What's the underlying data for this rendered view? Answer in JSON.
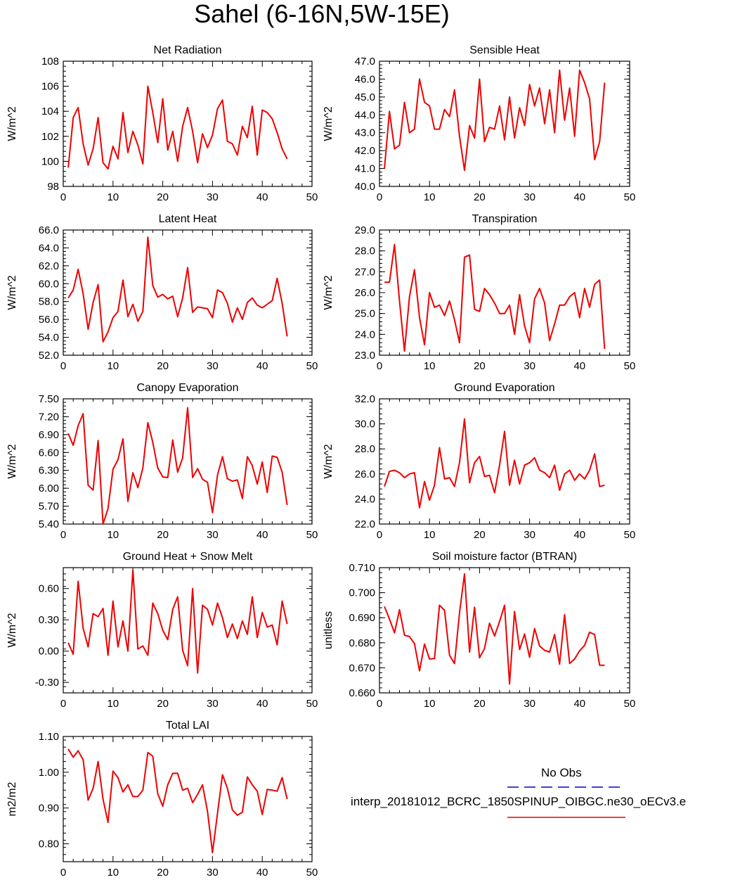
{
  "title": "Sahel (6-16N,5W-15E)",
  "legend": {
    "obs_label": "No Obs",
    "obs_color": "#0000cc",
    "model_label": "interp_20181012_BCRC_1850SPINUP_OIBGC.ne30_oECv3.e",
    "model_color": "#ee0000"
  },
  "chart_data": [
    {
      "type": "line",
      "title": "Net Radiation",
      "ylabel": "W/m^2",
      "xlim": [
        0,
        50
      ],
      "ylim": [
        98,
        108
      ],
      "xticks": [
        "0",
        "10",
        "20",
        "30",
        "40",
        "50"
      ],
      "yticks": [
        {
          "v": 98,
          "label": "98"
        },
        {
          "v": 100,
          "label": "100"
        },
        {
          "v": 102,
          "label": "102"
        },
        {
          "v": 104,
          "label": "104"
        },
        {
          "v": 106,
          "label": "106"
        },
        {
          "v": 108,
          "label": "108"
        }
      ],
      "series": [
        {
          "color": "#ee0000",
          "values": [
            99.5,
            103.5,
            104.3,
            101.4,
            99.7,
            101.0,
            103.5,
            99.9,
            99.4,
            101.2,
            100.2,
            103.9,
            100.7,
            102.4,
            101.3,
            99.8,
            106.0,
            103.9,
            101.5,
            105.0,
            100.9,
            102.4,
            100.0,
            102.8,
            104.3,
            102.4,
            99.9,
            102.2,
            101.1,
            102.1,
            104.2,
            104.9,
            101.6,
            101.4,
            100.5,
            102.8,
            101.9,
            104.4,
            100.5,
            104.1,
            103.9,
            103.4,
            102.3,
            101.0,
            100.2
          ]
        }
      ]
    },
    {
      "type": "line",
      "title": "Sensible Heat",
      "ylabel": "W/m^2",
      "xlim": [
        0,
        50
      ],
      "ylim": [
        40,
        47
      ],
      "xticks": [
        "0",
        "10",
        "20",
        "30",
        "40",
        "50"
      ],
      "yticks": [
        {
          "v": 40,
          "label": "40.0"
        },
        {
          "v": 41,
          "label": "41.0"
        },
        {
          "v": 42,
          "label": "42.0"
        },
        {
          "v": 43,
          "label": "43.0"
        },
        {
          "v": 44,
          "label": "44.0"
        },
        {
          "v": 45,
          "label": "45.0"
        },
        {
          "v": 46,
          "label": "46.0"
        },
        {
          "v": 47,
          "label": "47.0"
        }
      ],
      "series": [
        {
          "color": "#ee0000",
          "values": [
            41.0,
            44.2,
            42.1,
            42.3,
            44.7,
            43.0,
            43.2,
            46.0,
            44.7,
            44.5,
            43.2,
            43.2,
            44.3,
            43.9,
            45.4,
            42.8,
            40.9,
            43.4,
            42.7,
            46.0,
            42.5,
            43.3,
            43.2,
            44.5,
            42.6,
            45.0,
            42.7,
            44.4,
            43.4,
            45.7,
            44.5,
            45.5,
            43.5,
            45.4,
            43.0,
            46.5,
            43.7,
            45.5,
            42.8,
            46.5,
            45.8,
            44.9,
            41.5,
            42.5,
            45.8
          ]
        }
      ]
    },
    {
      "type": "line",
      "title": "Latent Heat",
      "ylabel": "W/m^2",
      "xlim": [
        0,
        50
      ],
      "ylim": [
        52,
        66
      ],
      "xticks": [
        "0",
        "10",
        "20",
        "30",
        "40",
        "50"
      ],
      "yticks": [
        {
          "v": 52,
          "label": "52.0"
        },
        {
          "v": 54,
          "label": "54.0"
        },
        {
          "v": 56,
          "label": "56.0"
        },
        {
          "v": 58,
          "label": "58.0"
        },
        {
          "v": 60,
          "label": "60.0"
        },
        {
          "v": 62,
          "label": "62.0"
        },
        {
          "v": 64,
          "label": "64.0"
        },
        {
          "v": 66,
          "label": "66.0"
        }
      ],
      "series": [
        {
          "color": "#ee0000",
          "values": [
            58.4,
            59.3,
            61.6,
            58.9,
            54.9,
            57.9,
            59.9,
            53.5,
            54.6,
            56.2,
            56.9,
            60.4,
            56.3,
            57.7,
            55.8,
            56.9,
            65.2,
            59.8,
            58.5,
            58.8,
            58.3,
            58.6,
            56.3,
            58.4,
            61.8,
            56.8,
            57.4,
            57.3,
            57.2,
            56.2,
            59.3,
            59.0,
            57.8,
            55.7,
            57.3,
            56.0,
            57.9,
            58.4,
            57.6,
            57.3,
            57.7,
            58.1,
            60.6,
            57.8,
            54.1
          ]
        }
      ]
    },
    {
      "type": "line",
      "title": "Transpiration",
      "ylabel": "W/m^2",
      "xlim": [
        0,
        50
      ],
      "ylim": [
        23,
        29
      ],
      "xticks": [
        "0",
        "10",
        "20",
        "30",
        "40",
        "50"
      ],
      "yticks": [
        {
          "v": 23,
          "label": "23.0"
        },
        {
          "v": 24,
          "label": "24.0"
        },
        {
          "v": 25,
          "label": "25.0"
        },
        {
          "v": 26,
          "label": "26.0"
        },
        {
          "v": 27,
          "label": "27.0"
        },
        {
          "v": 28,
          "label": "28.0"
        },
        {
          "v": 29,
          "label": "29.0"
        }
      ],
      "series": [
        {
          "color": "#ee0000",
          "values": [
            26.5,
            26.5,
            28.3,
            25.6,
            23.2,
            25.8,
            27.1,
            24.8,
            23.5,
            26.0,
            25.3,
            25.4,
            24.9,
            25.6,
            24.7,
            23.6,
            27.7,
            27.8,
            25.2,
            25.1,
            26.2,
            25.9,
            25.5,
            25.0,
            25.0,
            25.4,
            24.0,
            25.9,
            24.4,
            23.6,
            25.7,
            26.2,
            25.5,
            23.7,
            24.5,
            25.4,
            25.4,
            25.8,
            26.0,
            24.8,
            26.2,
            25.3,
            26.4,
            26.6,
            23.3
          ]
        }
      ]
    },
    {
      "type": "line",
      "title": "Canopy Evaporation",
      "ylabel": "W/m^2",
      "xlim": [
        0,
        50
      ],
      "ylim": [
        5.4,
        7.5
      ],
      "xticks": [
        "0",
        "10",
        "20",
        "30",
        "40",
        "50"
      ],
      "yticks": [
        {
          "v": 5.4,
          "label": "5.40"
        },
        {
          "v": 5.7,
          "label": "5.70"
        },
        {
          "v": 6.0,
          "label": "6.00"
        },
        {
          "v": 6.3,
          "label": "6.30"
        },
        {
          "v": 6.6,
          "label": "6.60"
        },
        {
          "v": 6.9,
          "label": "6.90"
        },
        {
          "v": 7.2,
          "label": "7.20"
        },
        {
          "v": 7.5,
          "label": "7.50"
        }
      ],
      "series": [
        {
          "color": "#ee0000",
          "values": [
            6.92,
            6.72,
            7.05,
            7.25,
            6.05,
            5.97,
            6.8,
            5.4,
            5.66,
            6.32,
            6.48,
            6.83,
            5.78,
            6.26,
            6.01,
            6.34,
            7.1,
            6.77,
            6.34,
            6.19,
            6.18,
            6.81,
            6.27,
            6.51,
            7.35,
            6.18,
            6.33,
            6.15,
            6.1,
            5.59,
            6.22,
            6.53,
            6.16,
            6.12,
            6.14,
            5.83,
            6.53,
            6.38,
            6.07,
            6.44,
            5.93,
            6.54,
            6.52,
            6.27,
            5.72
          ]
        }
      ]
    },
    {
      "type": "line",
      "title": "Ground Evaporation",
      "ylabel": "W/m^2",
      "xlim": [
        0,
        50
      ],
      "ylim": [
        22,
        32
      ],
      "xticks": [
        "0",
        "10",
        "20",
        "30",
        "40",
        "50"
      ],
      "yticks": [
        {
          "v": 22,
          "label": "22.0"
        },
        {
          "v": 24,
          "label": "24.0"
        },
        {
          "v": 26,
          "label": "26.0"
        },
        {
          "v": 28,
          "label": "28.0"
        },
        {
          "v": 30,
          "label": "30.0"
        },
        {
          "v": 32,
          "label": "32.0"
        }
      ],
      "series": [
        {
          "color": "#ee0000",
          "values": [
            25.0,
            26.2,
            26.3,
            26.1,
            25.7,
            26.0,
            26.1,
            23.3,
            25.4,
            23.9,
            25.1,
            28.1,
            25.6,
            25.7,
            25.0,
            26.9,
            30.4,
            25.3,
            26.9,
            27.4,
            25.8,
            25.9,
            24.5,
            26.7,
            29.4,
            25.1,
            27.1,
            25.2,
            26.7,
            26.9,
            27.3,
            26.3,
            26.1,
            25.7,
            26.7,
            24.7,
            26.0,
            26.3,
            25.5,
            26.0,
            25.6,
            26.3,
            27.6,
            25.0,
            25.1
          ]
        }
      ]
    },
    {
      "type": "line",
      "title": "Ground Heat + Snow Melt",
      "ylabel": "W/m^2",
      "xlim": [
        0,
        50
      ],
      "ylim": [
        -0.4,
        0.8
      ],
      "xticks": [
        "0",
        "10",
        "20",
        "30",
        "40",
        "50"
      ],
      "yticks": [
        {
          "v": -0.3,
          "label": "-0.30"
        },
        {
          "v": 0.0,
          "label": "0.00"
        },
        {
          "v": 0.3,
          "label": "0.30"
        },
        {
          "v": 0.6,
          "label": "0.60"
        }
      ],
      "series": [
        {
          "color": "#ee0000",
          "values": [
            0.08,
            -0.03,
            0.67,
            0.22,
            0.04,
            0.36,
            0.33,
            0.41,
            -0.04,
            0.48,
            0.04,
            0.29,
            0.0,
            0.78,
            0.02,
            0.05,
            -0.04,
            0.46,
            0.36,
            0.2,
            0.11,
            0.4,
            0.52,
            0.01,
            -0.14,
            0.6,
            -0.21,
            0.44,
            0.4,
            0.25,
            0.46,
            0.32,
            0.13,
            0.26,
            0.12,
            0.29,
            0.16,
            0.52,
            0.13,
            0.37,
            0.23,
            0.25,
            0.06,
            0.48,
            0.26
          ]
        }
      ]
    },
    {
      "type": "line",
      "title": "Soil moisture factor (BTRAN)",
      "ylabel": "unitless",
      "xlim": [
        0,
        50
      ],
      "ylim": [
        0.66,
        0.71
      ],
      "xticks": [
        "0",
        "10",
        "20",
        "30",
        "40",
        "50"
      ],
      "yticks": [
        {
          "v": 0.66,
          "label": "0.660"
        },
        {
          "v": 0.67,
          "label": "0.670"
        },
        {
          "v": 0.68,
          "label": "0.680"
        },
        {
          "v": 0.69,
          "label": "0.690"
        },
        {
          "v": 0.7,
          "label": "0.700"
        },
        {
          "v": 0.71,
          "label": "0.710"
        }
      ],
      "series": [
        {
          "color": "#ee0000",
          "values": [
            0.6945,
            0.6895,
            0.684,
            0.6932,
            0.683,
            0.6825,
            0.6797,
            0.6688,
            0.6795,
            0.6735,
            0.6737,
            0.695,
            0.693,
            0.675,
            0.6717,
            0.692,
            0.7075,
            0.6763,
            0.6942,
            0.674,
            0.6777,
            0.6878,
            0.6827,
            0.6885,
            0.695,
            0.6635,
            0.6925,
            0.6773,
            0.6835,
            0.6742,
            0.6857,
            0.6787,
            0.677,
            0.6763,
            0.6833,
            0.6715,
            0.6912,
            0.6717,
            0.6735,
            0.6768,
            0.679,
            0.6842,
            0.6833,
            0.671,
            0.671
          ]
        }
      ]
    },
    {
      "type": "line",
      "title": "Total LAI",
      "ylabel": "m2/m2",
      "xlim": [
        0,
        50
      ],
      "ylim": [
        0.75,
        1.1
      ],
      "xticks": [
        "0",
        "10",
        "20",
        "30",
        "40",
        "50"
      ],
      "yticks": [
        {
          "v": 0.8,
          "label": "0.80"
        },
        {
          "v": 0.9,
          "label": "0.90"
        },
        {
          "v": 1.0,
          "label": "1.00"
        },
        {
          "v": 1.1,
          "label": "1.10"
        }
      ],
      "series": [
        {
          "color": "#ee0000",
          "values": [
            1.065,
            1.042,
            1.06,
            1.035,
            0.922,
            0.955,
            1.03,
            0.925,
            0.86,
            1.003,
            0.985,
            0.945,
            0.965,
            0.932,
            0.932,
            0.95,
            1.055,
            1.045,
            0.94,
            0.905,
            0.965,
            0.997,
            0.997,
            0.95,
            0.955,
            0.915,
            0.938,
            0.965,
            0.89,
            0.775,
            0.885,
            0.993,
            0.955,
            0.895,
            0.88,
            0.888,
            0.987,
            0.965,
            0.947,
            0.882,
            0.952,
            0.95,
            0.947,
            0.985,
            0.925
          ]
        }
      ]
    }
  ]
}
